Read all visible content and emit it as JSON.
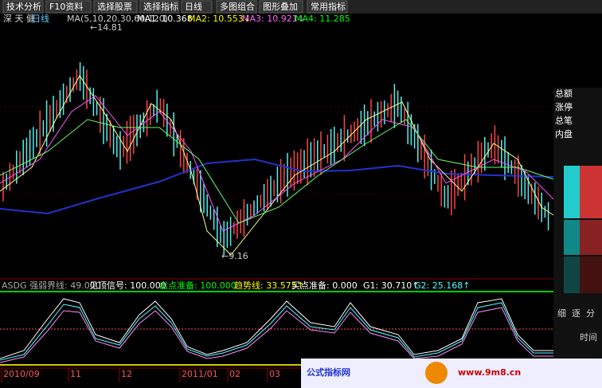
{
  "toolbar": [
    "技术分析",
    "F10资料",
    "选择股票",
    "选择指标",
    "日线",
    "多图组合",
    "图形叠加",
    "常用指标"
  ],
  "header": {
    "stock": "深 天 健",
    "period": "日线",
    "ma_params": "MA(5,10,20,30,60,120)",
    "ma": [
      "MA1: 10.368",
      "MA2: 10.553↓",
      "MA3: 10.921↓",
      "MA4: 11.285"
    ]
  },
  "price_marks": {
    "high": "←14.81",
    "low": "←9.16"
  },
  "indicator": [
    "ASDG 强弱界线: 49.000",
    "见顶信号: 100.000",
    "出点准备: 100.000",
    "趋势线: 33.575↑",
    "买点准备: 0.000",
    "G1: 30.710↑",
    "G2: 25.168↑"
  ],
  "x_axis": [
    "2010/09",
    "11",
    "12",
    "2011/01",
    "02",
    "03"
  ],
  "side_panel": {
    "fields": [
      "总额",
      "涨停",
      "总笔",
      "内盘"
    ],
    "tabs": [
      "细",
      "逐",
      "分",
      "时间"
    ]
  },
  "watermark": {
    "site": "公式指标网",
    "url": "www.9m8.cn"
  }
}
